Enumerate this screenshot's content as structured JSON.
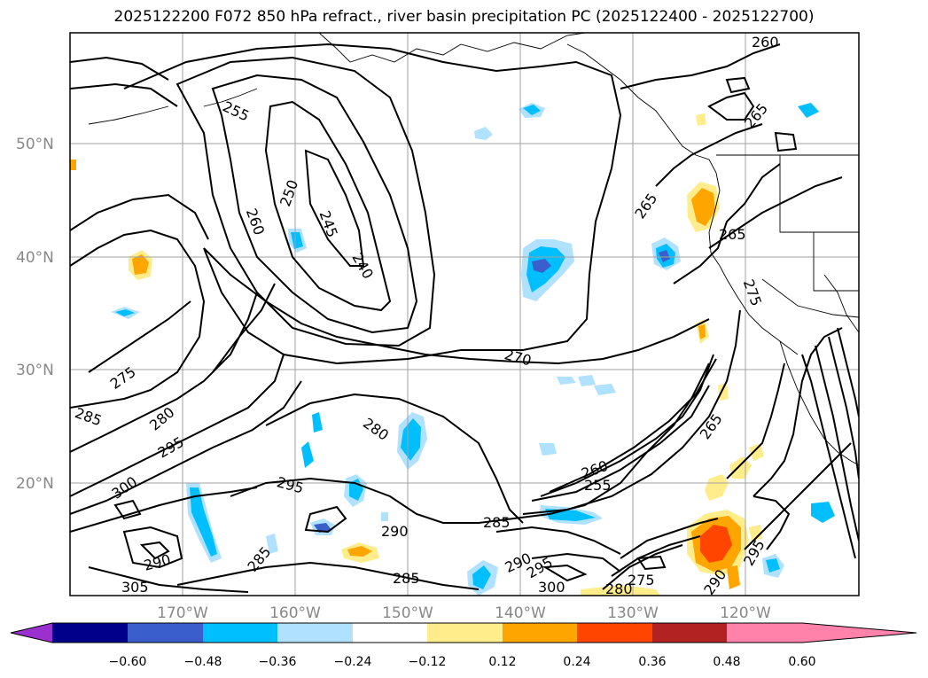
{
  "title": "2025122200 F072 850 hPa refract., river basin precipitation PC (2025122400 - 2025122700)",
  "map": {
    "lat_labels": [
      "50°N",
      "40°N",
      "30°N",
      "20°N"
    ],
    "lon_labels": [
      "170°W",
      "160°W",
      "150°W",
      "140°W",
      "130°W",
      "120°W"
    ],
    "contour_labels": [
      {
        "text": "260"
      },
      {
        "text": "265"
      },
      {
        "text": "255"
      },
      {
        "text": "250"
      },
      {
        "text": "245"
      },
      {
        "text": "240"
      },
      {
        "text": "260"
      },
      {
        "text": "265"
      },
      {
        "text": "265"
      },
      {
        "text": "275"
      },
      {
        "text": "270"
      },
      {
        "text": "275"
      },
      {
        "text": "285"
      },
      {
        "text": "280"
      },
      {
        "text": "295"
      },
      {
        "text": "300"
      },
      {
        "text": "280"
      },
      {
        "text": "295"
      },
      {
        "text": "265"
      },
      {
        "text": "260"
      },
      {
        "text": "255"
      },
      {
        "text": "285"
      },
      {
        "text": "290"
      },
      {
        "text": "290"
      },
      {
        "text": "295"
      },
      {
        "text": "285"
      },
      {
        "text": "290"
      },
      {
        "text": "305"
      },
      {
        "text": "285"
      },
      {
        "text": "300"
      },
      {
        "text": "280"
      },
      {
        "text": "275"
      },
      {
        "text": "290"
      },
      {
        "text": "295"
      }
    ]
  },
  "colorbar": {
    "labels": [
      "−0.60",
      "−0.48",
      "−0.36",
      "−0.24",
      "−0.12",
      "0.12",
      "0.24",
      "0.36",
      "0.48",
      "0.60"
    ],
    "colors": [
      "#9b30d0",
      "#00008b",
      "#3a5fcd",
      "#00bfff",
      "#b0e2ff",
      "#ffffff",
      "#ffec8b",
      "#ffa500",
      "#ff4500",
      "#b22222",
      "#ff82ab"
    ]
  },
  "colors": {
    "contour": "#000000",
    "grid": "#a0a0a0",
    "axis_label": "#888888"
  }
}
